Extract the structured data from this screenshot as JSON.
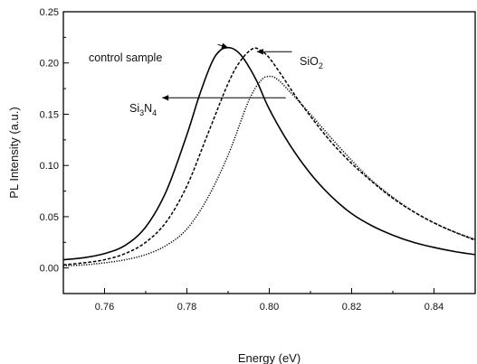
{
  "chart_data": {
    "type": "line",
    "xlabel": "Energy (eV)",
    "ylabel": "PL Intensity (a.u.)",
    "xlim": [
      0.75,
      0.85
    ],
    "ylim": [
      -0.025,
      0.25
    ],
    "x_ticks": [
      0.76,
      0.78,
      0.8,
      0.82,
      0.84
    ],
    "x_tick_labels": [
      "0.76",
      "0.78",
      "0.80",
      "0.82",
      "0.84"
    ],
    "y_ticks": [
      0.0,
      0.05,
      0.1,
      0.15,
      0.2,
      0.25
    ],
    "y_tick_labels": [
      "0.00",
      "0.05",
      "0.10",
      "0.15",
      "0.20",
      "0.25"
    ],
    "grid": false,
    "legend": "none",
    "series": [
      {
        "name": "control sample",
        "style": "solid",
        "color": "#000000",
        "x": [
          0.75,
          0.755,
          0.76,
          0.765,
          0.77,
          0.775,
          0.78,
          0.783,
          0.786,
          0.788,
          0.79,
          0.792,
          0.794,
          0.797,
          0.8,
          0.805,
          0.81,
          0.815,
          0.82,
          0.825,
          0.83,
          0.835,
          0.84,
          0.845,
          0.85
        ],
        "y": [
          0.008,
          0.01,
          0.014,
          0.022,
          0.04,
          0.075,
          0.13,
          0.168,
          0.2,
          0.212,
          0.215,
          0.212,
          0.203,
          0.182,
          0.155,
          0.12,
          0.092,
          0.07,
          0.053,
          0.041,
          0.032,
          0.025,
          0.02,
          0.016,
          0.013
        ]
      },
      {
        "name": "SiO2",
        "style": "dashed",
        "color": "#000000",
        "x": [
          0.75,
          0.755,
          0.76,
          0.765,
          0.77,
          0.775,
          0.78,
          0.785,
          0.79,
          0.793,
          0.796,
          0.798,
          0.8,
          0.803,
          0.806,
          0.81,
          0.815,
          0.82,
          0.825,
          0.83,
          0.835,
          0.84,
          0.845,
          0.85
        ],
        "y": [
          0.003,
          0.005,
          0.008,
          0.014,
          0.025,
          0.045,
          0.08,
          0.13,
          0.18,
          0.202,
          0.214,
          0.212,
          0.205,
          0.188,
          0.17,
          0.148,
          0.123,
          0.102,
          0.084,
          0.068,
          0.055,
          0.044,
          0.035,
          0.027
        ]
      },
      {
        "name": "Si3N4",
        "style": "dotted",
        "color": "#000000",
        "x": [
          0.75,
          0.755,
          0.76,
          0.765,
          0.77,
          0.775,
          0.78,
          0.785,
          0.79,
          0.795,
          0.798,
          0.8,
          0.802,
          0.805,
          0.81,
          0.815,
          0.82,
          0.825,
          0.83,
          0.835,
          0.84,
          0.845,
          0.85
        ],
        "y": [
          0.002,
          0.003,
          0.005,
          0.008,
          0.013,
          0.022,
          0.038,
          0.068,
          0.11,
          0.163,
          0.183,
          0.187,
          0.184,
          0.172,
          0.15,
          0.127,
          0.105,
          0.085,
          0.069,
          0.055,
          0.044,
          0.035,
          0.028
        ]
      }
    ],
    "annotations": [
      {
        "id": "control",
        "text": "control sample",
        "arrow_from": [
          0.7875,
          0.218
        ],
        "arrow_to": [
          0.79,
          0.215
        ]
      },
      {
        "id": "sio2",
        "text": "SiO",
        "subscript": "2",
        "arrow_from": [
          0.8055,
          0.211
        ],
        "arrow_to": [
          0.797,
          0.211
        ]
      },
      {
        "id": "si3n4",
        "text_parts": [
          "Si",
          "3",
          "N",
          "4"
        ],
        "arrow_from": [
          0.804,
          0.166
        ],
        "arrow_to": [
          0.774,
          0.166
        ]
      }
    ]
  }
}
